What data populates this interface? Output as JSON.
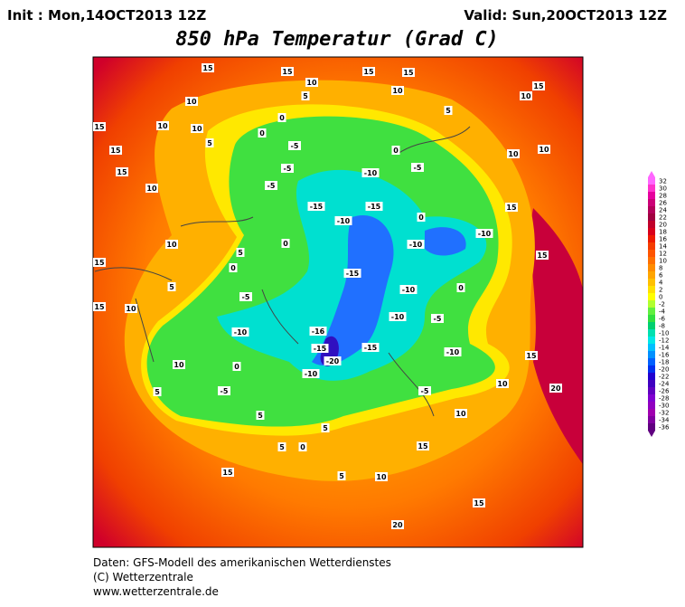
{
  "header": {
    "init": "Init : Mon,14OCT2013 12Z",
    "valid": "Valid: Sun,20OCT2013 12Z",
    "title": "850 hPa Temperatur (Grad C)"
  },
  "footer": {
    "lines": [
      "Daten: GFS-Modell des amerikanischen Wetterdienstes",
      "(C) Wetterzentrale",
      "www.wetterzentrale.de"
    ]
  },
  "colorbar": {
    "levels": [
      32,
      30,
      28,
      26,
      24,
      22,
      20,
      18,
      16,
      14,
      12,
      10,
      8,
      6,
      4,
      2,
      0,
      -2,
      -4,
      -6,
      -8,
      -10,
      -12,
      -14,
      -16,
      -18,
      -20,
      -22,
      -24,
      -26,
      -28,
      -30,
      -32,
      -34,
      -36
    ],
    "colors": [
      "#ff66ff",
      "#ff33cc",
      "#e6009e",
      "#cc0077",
      "#b30059",
      "#a00040",
      "#c0002a",
      "#d9001a",
      "#ee1a00",
      "#f53c00",
      "#ff5500",
      "#ff7000",
      "#ff8c00",
      "#ffa500",
      "#ffc000",
      "#ffe000",
      "#ffff00",
      "#b0ff30",
      "#60f040",
      "#30e040",
      "#00d070",
      "#00e0b0",
      "#00e8e8",
      "#00c0ff",
      "#0090ff",
      "#0060ff",
      "#0030f0",
      "#2000d0",
      "#4000c0",
      "#6000c0",
      "#8000d0",
      "#9000c0",
      "#a000b0",
      "#8000a0",
      "#600080"
    ]
  },
  "contour_labels": [
    15,
    15,
    10,
    15,
    15,
    15,
    10,
    5,
    10,
    10,
    15,
    10,
    0,
    5,
    10,
    15,
    5,
    0,
    -5,
    0,
    10,
    10,
    15,
    10,
    -5,
    -10,
    -5,
    -5,
    -15,
    -10,
    -15,
    0,
    15,
    10,
    5,
    0,
    -10,
    -10,
    15,
    0,
    -15,
    15,
    5,
    -5,
    -10,
    0,
    15,
    10,
    -10,
    -16,
    -10,
    -5,
    -15,
    -20,
    -10,
    15,
    10,
    0,
    -10,
    -15,
    5,
    -5,
    -5,
    10,
    20,
    5,
    5,
    15,
    10,
    15,
    5,
    10,
    15,
    20,
    0,
    5
  ]
}
